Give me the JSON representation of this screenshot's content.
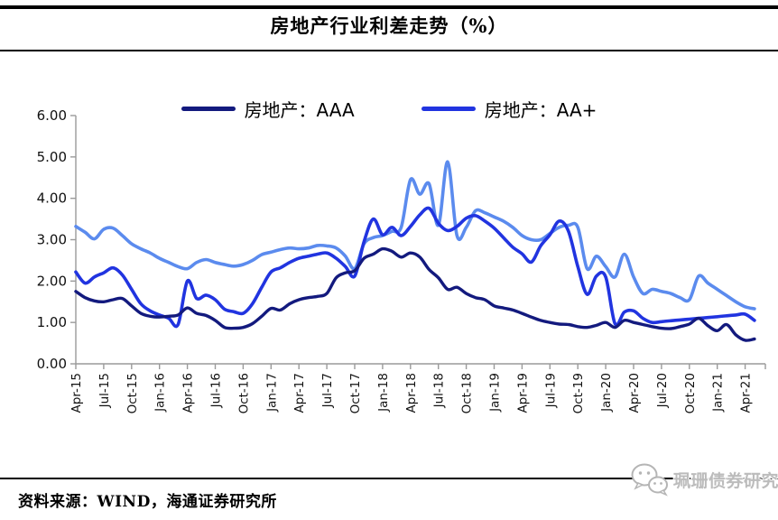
{
  "title": "房地产行业利差走势（%）",
  "source_note": "资料来源：WIND，海通证券研究所",
  "watermark": {
    "text": "珮珊债券研究",
    "icon": "wechat-chat-bubbles-icon",
    "color": "#bcbcbc"
  },
  "legend": {
    "items": [
      {
        "label": "房地产：AAA",
        "color": "#131A7E"
      },
      {
        "label": "房地产：AA+",
        "color": "#2134E0"
      }
    ]
  },
  "axis_colors": {
    "axis_line": "#9a9a9a",
    "tick_label": "#111111"
  },
  "chart_data": {
    "type": "line",
    "title": "房地产行业利差走势（%）",
    "xlabel": "",
    "ylabel": "",
    "ylim": [
      0,
      6
    ],
    "y_ticks": [
      "0.00",
      "1.00",
      "2.00",
      "3.00",
      "4.00",
      "5.00",
      "6.00"
    ],
    "grid": false,
    "legend_position": "top-center",
    "legend": [
      "房地产：AAA",
      "房地产：AA+"
    ],
    "x_tick_every_months": 3,
    "x": [
      "Apr-15",
      "May-15",
      "Jun-15",
      "Jul-15",
      "Aug-15",
      "Sep-15",
      "Oct-15",
      "Nov-15",
      "Dec-15",
      "Jan-16",
      "Feb-16",
      "Mar-16",
      "Apr-16",
      "May-16",
      "Jun-16",
      "Jul-16",
      "Aug-16",
      "Sep-16",
      "Oct-16",
      "Nov-16",
      "Dec-16",
      "Jan-17",
      "Feb-17",
      "Mar-17",
      "Apr-17",
      "May-17",
      "Jun-17",
      "Jul-17",
      "Aug-17",
      "Sep-17",
      "Oct-17",
      "Nov-17",
      "Dec-17",
      "Jan-18",
      "Feb-18",
      "Mar-18",
      "Apr-18",
      "May-18",
      "Jun-18",
      "Jul-18",
      "Aug-18",
      "Sep-18",
      "Oct-18",
      "Nov-18",
      "Dec-18",
      "Jan-19",
      "Feb-19",
      "Mar-19",
      "Apr-19",
      "May-19",
      "Jun-19",
      "Jul-19",
      "Aug-19",
      "Sep-19",
      "Oct-19",
      "Nov-19",
      "Dec-19",
      "Jan-20",
      "Feb-20",
      "Mar-20",
      "Apr-20",
      "May-20",
      "Jun-20",
      "Jul-20",
      "Aug-20",
      "Sep-20",
      "Oct-20",
      "Nov-20",
      "Dec-20",
      "Jan-21",
      "Feb-21",
      "Mar-21",
      "Apr-21",
      "May-21"
    ],
    "x_tick_labels": [
      "Apr-15",
      "Jul-15",
      "Oct-15",
      "Jan-16",
      "Apr-16",
      "Jul-16",
      "Oct-16",
      "Jan-17",
      "Apr-17",
      "Jul-17",
      "Oct-17",
      "Jan-18",
      "Apr-18",
      "Jul-18",
      "Oct-18",
      "Jan-19",
      "Apr-19",
      "Jul-19",
      "Oct-19",
      "Jan-20",
      "Apr-20",
      "Jul-20",
      "Oct-20",
      "Jan-21",
      "Apr-21"
    ],
    "series": [
      {
        "name": "",
        "note": "unlabeled light-blue line (no legend entry visible in image)",
        "color": "#5B8BEE",
        "stroke_width": 3.6,
        "values": [
          3.32,
          3.18,
          3.02,
          3.25,
          3.28,
          3.1,
          2.9,
          2.78,
          2.68,
          2.55,
          2.45,
          2.35,
          2.3,
          2.45,
          2.52,
          2.45,
          2.4,
          2.36,
          2.4,
          2.5,
          2.64,
          2.7,
          2.76,
          2.8,
          2.78,
          2.8,
          2.86,
          2.85,
          2.8,
          2.6,
          2.3,
          2.9,
          3.05,
          3.1,
          3.2,
          3.3,
          4.45,
          4.1,
          4.35,
          3.35,
          4.88,
          3.1,
          3.3,
          3.7,
          3.65,
          3.55,
          3.45,
          3.3,
          3.1,
          3.0,
          3.0,
          3.15,
          3.3,
          3.35,
          3.3,
          2.3,
          2.6,
          2.35,
          2.1,
          2.65,
          2.1,
          1.7,
          1.8,
          1.75,
          1.7,
          1.6,
          1.55,
          2.12,
          1.95,
          1.8,
          1.65,
          1.5,
          1.38,
          1.33
        ]
      },
      {
        "name": "房地产：AA+",
        "color": "#2134E0",
        "stroke_width": 3.6,
        "values": [
          2.22,
          1.95,
          2.1,
          2.2,
          2.32,
          2.15,
          1.8,
          1.45,
          1.28,
          1.18,
          1.1,
          0.95,
          2.0,
          1.58,
          1.66,
          1.55,
          1.32,
          1.26,
          1.22,
          1.45,
          1.85,
          2.22,
          2.32,
          2.45,
          2.55,
          2.6,
          2.65,
          2.68,
          2.55,
          2.35,
          2.12,
          2.95,
          3.5,
          3.12,
          3.3,
          3.1,
          3.32,
          3.6,
          3.76,
          3.4,
          3.22,
          3.32,
          3.52,
          3.58,
          3.45,
          3.28,
          3.05,
          2.82,
          2.66,
          2.46,
          2.85,
          3.12,
          3.45,
          3.2,
          2.35,
          1.68,
          2.12,
          2.1,
          0.97,
          1.25,
          1.28,
          1.1,
          1.0,
          1.02,
          1.04,
          1.06,
          1.08,
          1.1,
          1.12,
          1.14,
          1.16,
          1.18,
          1.2,
          1.05
        ]
      },
      {
        "name": "房地产：AAA",
        "color": "#131A7E",
        "stroke_width": 3.4,
        "values": [
          1.75,
          1.6,
          1.52,
          1.5,
          1.55,
          1.58,
          1.4,
          1.22,
          1.15,
          1.13,
          1.15,
          1.18,
          1.35,
          1.22,
          1.17,
          1.05,
          0.88,
          0.86,
          0.88,
          0.97,
          1.15,
          1.34,
          1.3,
          1.45,
          1.55,
          1.6,
          1.63,
          1.7,
          2.08,
          2.2,
          2.25,
          2.55,
          2.65,
          2.78,
          2.72,
          2.58,
          2.68,
          2.58,
          2.28,
          2.08,
          1.8,
          1.85,
          1.7,
          1.6,
          1.55,
          1.4,
          1.35,
          1.3,
          1.22,
          1.13,
          1.05,
          1.0,
          0.96,
          0.95,
          0.9,
          0.88,
          0.93,
          1.0,
          0.88,
          1.05,
          1.0,
          0.95,
          0.9,
          0.86,
          0.85,
          0.9,
          0.96,
          1.1,
          0.92,
          0.8,
          0.95,
          0.7,
          0.57,
          0.6
        ]
      }
    ]
  }
}
